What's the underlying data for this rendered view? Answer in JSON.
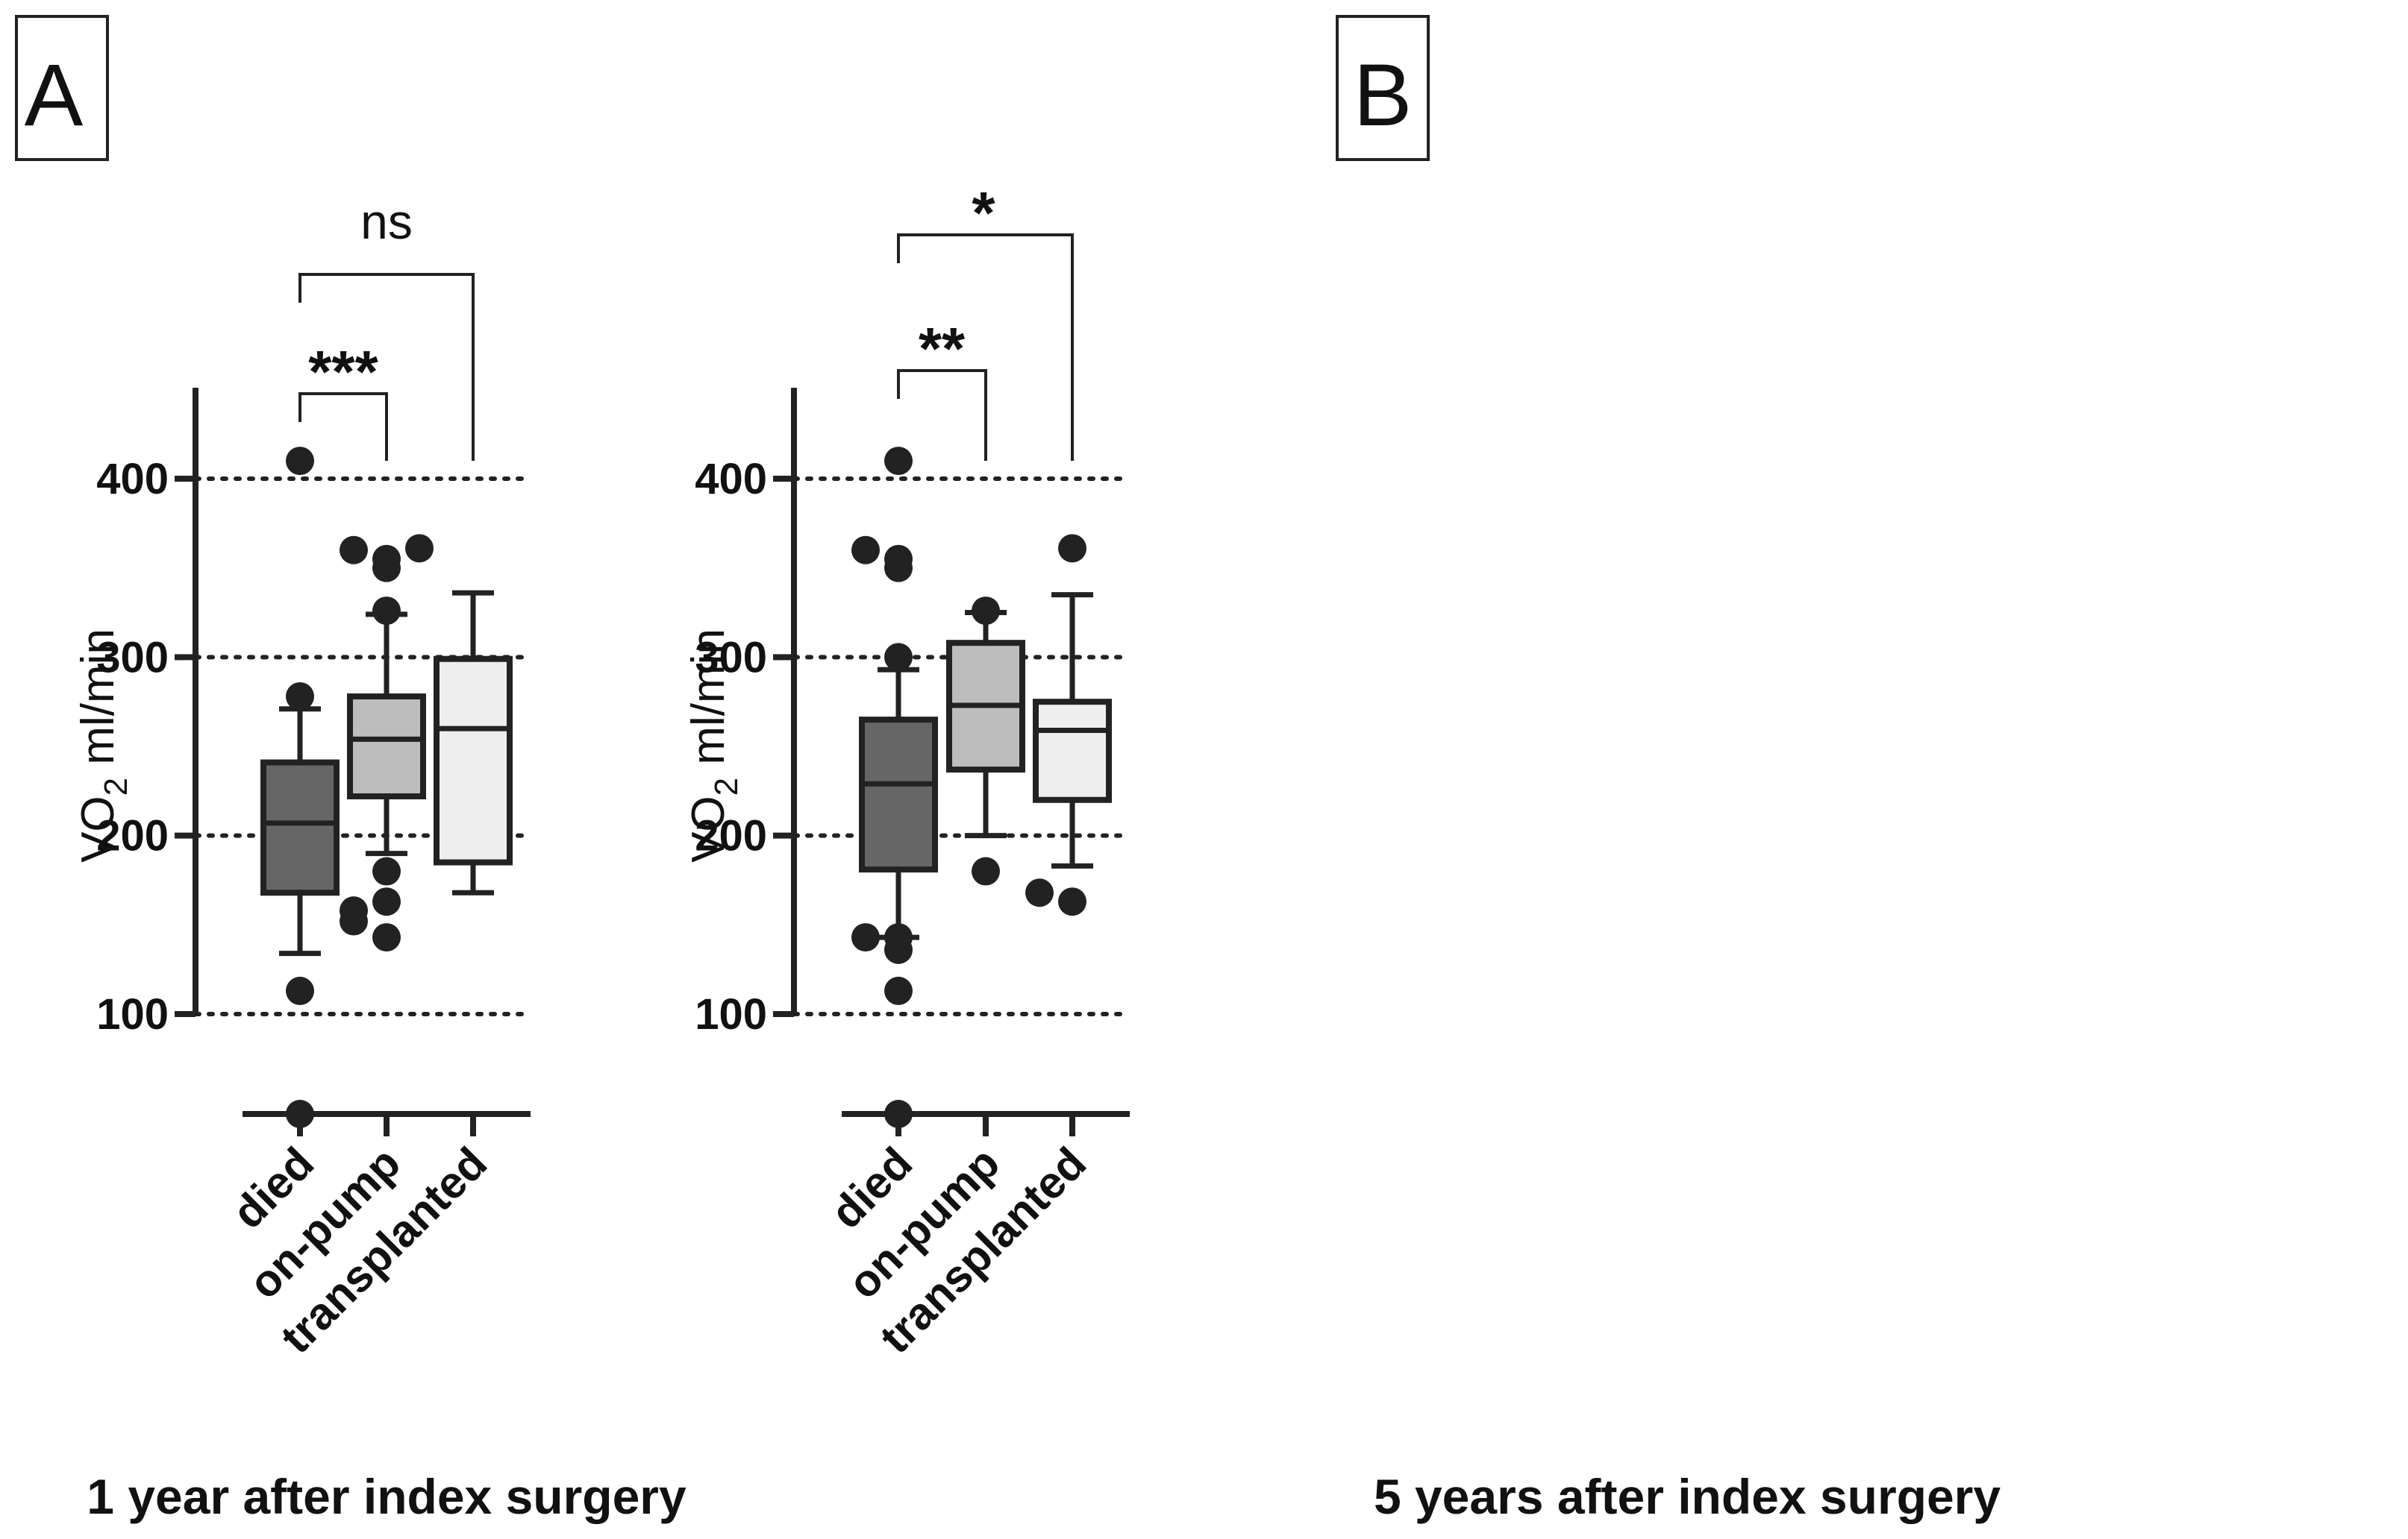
{
  "chart_data": [
    {
      "panel_label": "A",
      "type": "box",
      "title": "1 year after index surgery",
      "ylabel_main": "VO",
      "ylabel_sub": "2",
      "ylabel_unit": " ml/min",
      "yticks": [
        100,
        200,
        300,
        400
      ],
      "ylim": [
        45,
        450
      ],
      "gridlines": [
        100,
        200,
        300,
        400
      ],
      "categories": [
        "died",
        "on-pump",
        "transplanted"
      ],
      "colors": {
        "died": "#666666",
        "on-pump": "#bdbdbd",
        "transplanted": "#eeeeee"
      },
      "boxes": [
        {
          "category": "died",
          "whisker_low": 134,
          "q1": 168,
          "median": 207,
          "q3": 241,
          "whisker_high": 271,
          "outliers": [
            410,
            278,
            113,
            45
          ]
        },
        {
          "category": "on-pump",
          "whisker_low": 190,
          "q1": 222,
          "median": 254,
          "q3": 278,
          "whisker_high": 324,
          "outliers": [
            355,
            360,
            350,
            361,
            326,
            180,
            163,
            143,
            152,
            158
          ]
        },
        {
          "category": "transplanted",
          "whisker_low": 168,
          "q1": 185,
          "median": 260,
          "q3": 299,
          "whisker_high": 336,
          "outliers": []
        }
      ],
      "comparisons": [
        {
          "from": "died",
          "to": "on-pump",
          "label": "***",
          "bold": true
        },
        {
          "from": "died",
          "to": "transplanted",
          "label": "ns",
          "bold": false
        }
      ]
    },
    {
      "panel_label": "B",
      "type": "box",
      "title": "5 years after index surgery",
      "ylabel_main": "VO",
      "ylabel_sub": "2",
      "ylabel_unit": " ml/min",
      "yticks": [
        100,
        200,
        300,
        400
      ],
      "ylim": [
        45,
        450
      ],
      "gridlines": [
        100,
        200,
        300,
        400
      ],
      "categories": [
        "died",
        "on-pump",
        "transplanted"
      ],
      "colors": {
        "died": "#666666",
        "on-pump": "#bdbdbd",
        "transplanted": "#eeeeee"
      },
      "boxes": [
        {
          "category": "died",
          "whisker_low": 143,
          "q1": 181,
          "median": 229,
          "q3": 265,
          "whisker_high": 293,
          "outliers": [
            410,
            355,
            350,
            360,
            300,
            143,
            136,
            143,
            113,
            45
          ]
        },
        {
          "category": "on-pump",
          "whisker_low": 200,
          "q1": 237,
          "median": 273,
          "q3": 308,
          "whisker_high": 325,
          "outliers": [
            326,
            180
          ]
        },
        {
          "category": "transplanted",
          "whisker_low": 183,
          "q1": 220,
          "median": 259,
          "q3": 275,
          "whisker_high": 335,
          "outliers": [
            361,
            163,
            168
          ]
        }
      ],
      "comparisons": [
        {
          "from": "died",
          "to": "on-pump",
          "label": "**",
          "bold": true
        },
        {
          "from": "died",
          "to": "transplanted",
          "label": "*",
          "bold": true
        }
      ]
    }
  ]
}
